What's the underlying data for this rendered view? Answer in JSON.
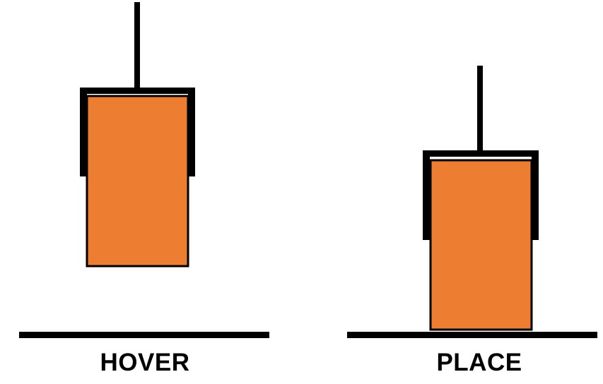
{
  "colors": {
    "block_fill": "#ED7D31",
    "stroke": "#000000",
    "background": "#FFFFFF"
  },
  "panels": [
    {
      "id": "hover",
      "caption": "HOVER"
    },
    {
      "id": "place",
      "caption": "PLACE"
    }
  ]
}
